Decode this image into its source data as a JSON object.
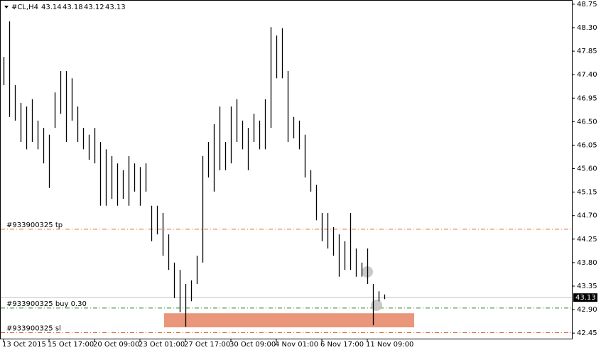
{
  "chart_data": {
    "type": "hilo",
    "title": "#CL,H4",
    "ohlc": [
      43.14,
      43.18,
      43.12,
      43.13
    ],
    "color": "#000000",
    "categories": [
      "13 Oct 2015",
      null,
      null,
      null,
      null,
      null,
      null,
      null,
      "15 Oct 17:00",
      null,
      null,
      null,
      null,
      null,
      null,
      null,
      "20 Oct 09:00",
      null,
      null,
      null,
      null,
      null,
      null,
      null,
      "23 Oct 01:00",
      null,
      null,
      null,
      null,
      null,
      null,
      null,
      "27 Oct 17:00",
      null,
      null,
      null,
      null,
      null,
      null,
      null,
      "30 Oct 09:00",
      null,
      null,
      null,
      null,
      null,
      null,
      null,
      "4 Nov 01:00",
      null,
      null,
      null,
      null,
      null,
      null,
      null,
      "6 Nov 17:00",
      null,
      null,
      null,
      null,
      null,
      null,
      null,
      "11 Nov 09:00",
      null,
      null,
      null
    ],
    "high": [
      47.74,
      48.42,
      47.2,
      46.86,
      46.79,
      46.93,
      46.52,
      46.38,
      46.25,
      47.06,
      47.47,
      47.47,
      47.33,
      46.79,
      46.38,
      46.25,
      46.38,
      46.11,
      45.97,
      45.84,
      45.7,
      45.57,
      45.84,
      45.7,
      45.63,
      45.7,
      44.89,
      44.89,
      44.75,
      44.34,
      43.8,
      43.66,
      43.39,
      43.46,
      43.93,
      45.84,
      46.11,
      46.45,
      46.79,
      46.11,
      46.79,
      46.93,
      46.52,
      46.38,
      46.65,
      46.52,
      46.93,
      48.31,
      48.15,
      48.29,
      47.47,
      46.59,
      46.52,
      46.25,
      45.57,
      45.29,
      44.75,
      44.75,
      44.48,
      44.34,
      44.21,
      44.75,
      44.07,
      43.8,
      44.07,
      43.39,
      43.25,
      43.19
    ],
    "low": [
      47.2,
      46.59,
      46.52,
      46.11,
      45.97,
      46.11,
      45.97,
      45.7,
      45.23,
      46.38,
      46.65,
      46.11,
      46.52,
      46.11,
      45.97,
      45.77,
      45.7,
      44.89,
      44.89,
      45.02,
      44.89,
      45.02,
      44.89,
      45.16,
      44.89,
      45.16,
      44.21,
      44.34,
      43.93,
      43.66,
      43.12,
      42.85,
      42.57,
      43.06,
      43.39,
      43.8,
      45.43,
      45.16,
      45.57,
      45.57,
      45.7,
      46.11,
      45.97,
      45.57,
      46.11,
      45.97,
      45.97,
      46.38,
      47.33,
      47.33,
      46.11,
      46.18,
      45.97,
      45.43,
      45.16,
      44.61,
      44.21,
      44.07,
      43.93,
      43.53,
      43.66,
      43.66,
      43.53,
      43.53,
      43.39,
      42.6,
      43.06,
      43.1
    ],
    "ylim": [
      42.33,
      48.83
    ],
    "yticks": [
      48.75,
      {
        "value": 48.3,
        "label": "48.30"
      },
      47.85,
      {
        "value": 47.4,
        "label": "47.40"
      },
      46.95,
      {
        "value": 46.5,
        "label": "46.50"
      },
      46.05,
      {
        "value": 45.6,
        "label": "45.60"
      },
      45.15,
      {
        "value": 44.7,
        "label": "44.70"
      },
      44.25,
      {
        "value": 43.8,
        "label": "43.80"
      },
      43.35,
      {
        "value": 42.9,
        "label": "42.90"
      },
      42.45
    ],
    "levels": [
      {
        "label": "#933900325 tp",
        "value": 44.44,
        "color": "#e0703a"
      },
      {
        "label": "#933900325 buy 0.30",
        "value": 42.93,
        "color": "#2e8b2e"
      },
      {
        "label": "#933900325 sl",
        "value": 42.46,
        "color": "#e0703a"
      }
    ],
    "bid": 43.13,
    "zone": {
      "top": 42.83,
      "bottom": 42.56,
      "color": "#e9967a"
    }
  }
}
